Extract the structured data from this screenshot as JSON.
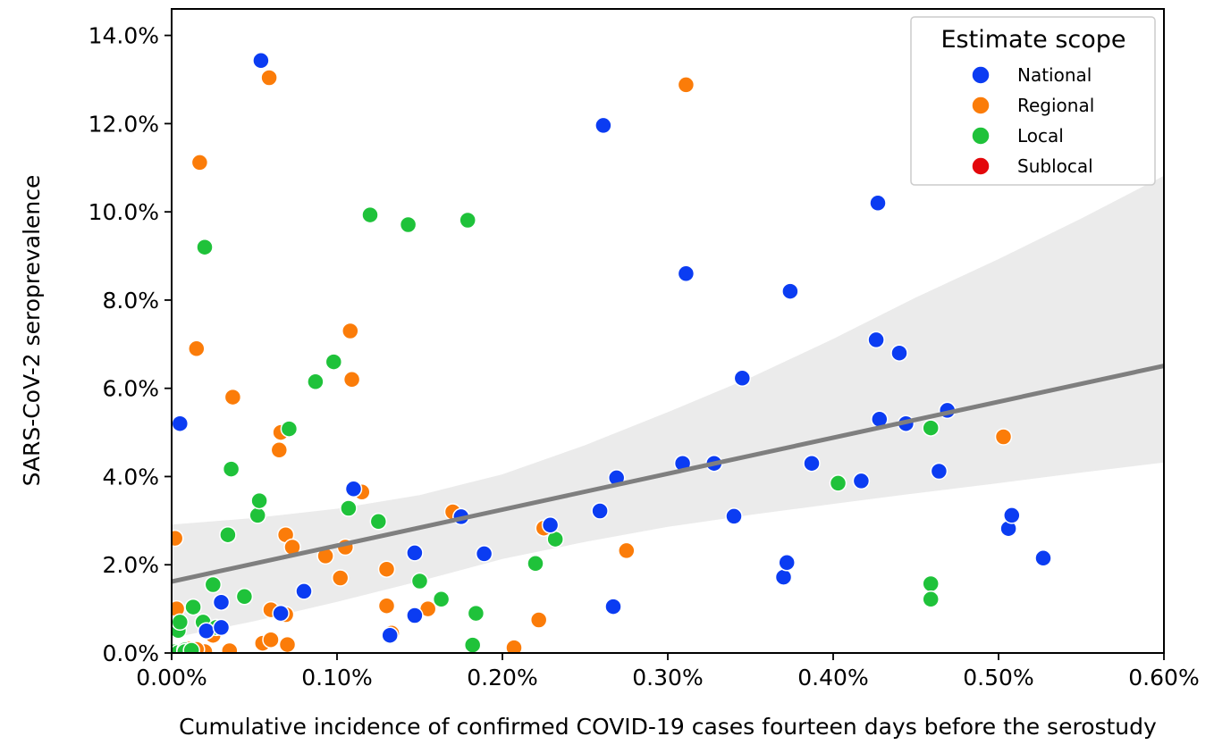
{
  "chart_data": {
    "type": "scatter",
    "xlabel": "Cumulative incidence of confirmed COVID-19 cases fourteen days before the serostudy",
    "ylabel": "SARS-CoV-2 seroprevalence",
    "xlim": [
      0,
      0.006
    ],
    "ylim": [
      0,
      0.146
    ],
    "x_ticks": [
      0,
      0.001,
      0.002,
      0.003,
      0.004,
      0.005,
      0.006
    ],
    "x_tick_labels": [
      "0.00%",
      "0.10%",
      "0.20%",
      "0.30%",
      "0.40%",
      "0.50%",
      "0.60%"
    ],
    "y_ticks": [
      0,
      0.02,
      0.04,
      0.06,
      0.08,
      0.1,
      0.12,
      0.14
    ],
    "y_tick_labels": [
      "0.0%",
      "2.0%",
      "4.0%",
      "6.0%",
      "8.0%",
      "10.0%",
      "12.0%",
      "14.0%"
    ],
    "grid": false,
    "legend": {
      "title": "Estimate scope",
      "position": "top-right",
      "entries": [
        {
          "name": "National",
          "color": "#0b3cf2"
        },
        {
          "name": "Regional",
          "color": "#fb7c09"
        },
        {
          "name": "Local",
          "color": "#1fc23a"
        },
        {
          "name": "Sublocal",
          "color": "#e3070b"
        }
      ]
    },
    "regression": {
      "color": "#7f7f7f",
      "band_color": "#ebebeb",
      "line": [
        [
          0,
          0.0162
        ],
        [
          0.006,
          0.0651
        ]
      ],
      "band_upper": [
        [
          0,
          0.0291
        ],
        [
          0.0005,
          0.0306
        ],
        [
          0.001,
          0.0327
        ],
        [
          0.0015,
          0.0358
        ],
        [
          0.002,
          0.0405
        ],
        [
          0.0025,
          0.0471
        ],
        [
          0.003,
          0.0546
        ],
        [
          0.0035,
          0.0624
        ],
        [
          0.004,
          0.0712
        ],
        [
          0.0045,
          0.0806
        ],
        [
          0.005,
          0.0893
        ],
        [
          0.0055,
          0.0985
        ],
        [
          0.006,
          0.1082
        ]
      ],
      "band_lower": [
        [
          0,
          0.0034
        ],
        [
          0.0005,
          0.0072
        ],
        [
          0.001,
          0.0116
        ],
        [
          0.0015,
          0.0163
        ],
        [
          0.002,
          0.0213
        ],
        [
          0.0025,
          0.0252
        ],
        [
          0.003,
          0.0286
        ],
        [
          0.0035,
          0.0313
        ],
        [
          0.004,
          0.0338
        ],
        [
          0.0045,
          0.0362
        ],
        [
          0.005,
          0.0385
        ],
        [
          0.0055,
          0.0409
        ],
        [
          0.006,
          0.0432
        ]
      ]
    },
    "series": [
      {
        "name": "Regional",
        "color": "#fb7c09",
        "points": [
          [
            2e-05,
            0.026
          ],
          [
            3e-05,
            0.01
          ],
          [
            0.0001,
            0.0005
          ],
          [
            0.0002,
            0.0003
          ],
          [
            0.0001,
            0.0008
          ],
          [
            0.00035,
            0.0005
          ],
          [
            0.00055,
            0.0022
          ],
          [
            0.0001,
            0.001
          ],
          [
            0.00105,
            0.024
          ],
          [
            0.00015,
            0.0008
          ],
          [
            0.0013,
            0.019
          ],
          [
            0.0013,
            0.0107
          ],
          [
            0.00015,
            0.069
          ],
          [
            0.00017,
            0.1112
          ],
          [
            0.00037,
            0.058
          ],
          [
            0.00025,
            0.004
          ],
          [
            0.00059,
            0.1304
          ],
          [
            0.0006,
            0.0098
          ],
          [
            0.00065,
            0.046
          ],
          [
            0.00066,
            0.05
          ],
          [
            0.0006,
            0.003
          ],
          [
            0.00069,
            0.0268
          ],
          [
            0.00069,
            0.0087
          ],
          [
            0.0007,
            0.0019
          ],
          [
            0.00073,
            0.024
          ],
          [
            0.00093,
            0.022
          ],
          [
            0.00102,
            0.017
          ],
          [
            0.00108,
            0.073
          ],
          [
            0.00109,
            0.062
          ],
          [
            0.00115,
            0.0365
          ],
          [
            0.00133,
            0.0045
          ],
          [
            0.00155,
            0.01
          ],
          [
            0.0017,
            0.032
          ],
          [
            0.00207,
            0.0012
          ],
          [
            0.00222,
            0.0075
          ],
          [
            0.00225,
            0.0283
          ],
          [
            0.00275,
            0.0232
          ],
          [
            0.00311,
            0.1288
          ],
          [
            0.00503,
            0.049
          ]
        ]
      },
      {
        "name": "Local",
        "color": "#1fc23a",
        "points": [
          [
            2e-05,
            0.0003
          ],
          [
            4e-05,
            0.0051
          ],
          [
            5e-05,
            0.007
          ],
          [
            4e-05,
            0.0001
          ],
          [
            8e-05,
            0.0007
          ],
          [
            8e-05,
            0.0003
          ],
          [
            0.00012,
            0.0006
          ],
          [
            0.00013,
            0.0104
          ],
          [
            0.0002,
            0.092
          ],
          [
            0.00019,
            0.007
          ],
          [
            0.00025,
            0.0155
          ],
          [
            0.00027,
            0.0058
          ],
          [
            0.00034,
            0.0268
          ],
          [
            0.00036,
            0.0417
          ],
          [
            0.00044,
            0.0128
          ],
          [
            0.00052,
            0.0312
          ],
          [
            0.00053,
            0.0345
          ],
          [
            0.00071,
            0.0508
          ],
          [
            0.00087,
            0.0615
          ],
          [
            0.00098,
            0.066
          ],
          [
            0.00107,
            0.0328
          ],
          [
            0.0012,
            0.0993
          ],
          [
            0.00125,
            0.0298
          ],
          [
            0.00143,
            0.0971
          ],
          [
            0.0015,
            0.0163
          ],
          [
            0.00163,
            0.0122
          ],
          [
            0.00179,
            0.0981
          ],
          [
            0.00184,
            0.009
          ],
          [
            0.00182,
            0.0018
          ],
          [
            0.0022,
            0.0203
          ],
          [
            0.00232,
            0.0258
          ],
          [
            0.00403,
            0.0385
          ],
          [
            0.00459,
            0.051
          ],
          [
            0.00459,
            0.0157
          ],
          [
            0.00459,
            0.0122
          ]
        ]
      },
      {
        "name": "National",
        "color": "#0b3cf2",
        "points": [
          [
            5e-05,
            0.052
          ],
          [
            0.00021,
            0.005
          ],
          [
            0.0003,
            0.0058
          ],
          [
            0.0003,
            0.0115
          ],
          [
            0.00054,
            0.1343
          ],
          [
            0.00066,
            0.009
          ],
          [
            0.0008,
            0.014
          ],
          [
            0.0011,
            0.0372
          ],
          [
            0.00132,
            0.004
          ],
          [
            0.00147,
            0.0227
          ],
          [
            0.00147,
            0.0085
          ],
          [
            0.00175,
            0.0309
          ],
          [
            0.00189,
            0.0225
          ],
          [
            0.00229,
            0.029
          ],
          [
            0.00259,
            0.0322
          ],
          [
            0.00261,
            0.1196
          ],
          [
            0.00267,
            0.0105
          ],
          [
            0.00269,
            0.0397
          ],
          [
            0.00309,
            0.043
          ],
          [
            0.00311,
            0.086
          ],
          [
            0.00328,
            0.043
          ],
          [
            0.0034,
            0.031
          ],
          [
            0.00345,
            0.0623
          ],
          [
            0.0037,
            0.0172
          ],
          [
            0.00372,
            0.0205
          ],
          [
            0.00374,
            0.082
          ],
          [
            0.00387,
            0.043
          ],
          [
            0.00417,
            0.039
          ],
          [
            0.00426,
            0.071
          ],
          [
            0.00427,
            0.102
          ],
          [
            0.00428,
            0.053
          ],
          [
            0.0044,
            0.068
          ],
          [
            0.00444,
            0.052
          ],
          [
            0.00464,
            0.0412
          ],
          [
            0.00469,
            0.055
          ],
          [
            0.00506,
            0.0282
          ],
          [
            0.00508,
            0.0312
          ],
          [
            0.00527,
            0.0215
          ]
        ]
      },
      {
        "name": "Sublocal",
        "color": "#e3070b",
        "points": []
      }
    ]
  }
}
